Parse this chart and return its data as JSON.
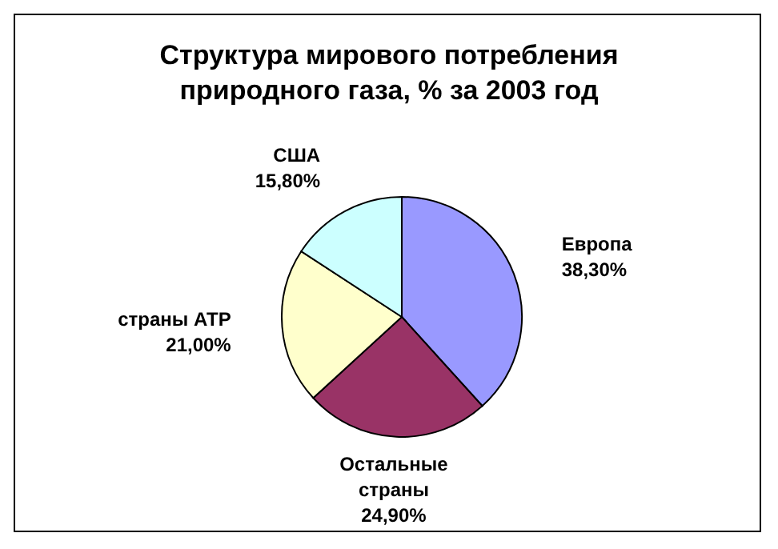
{
  "chart_data": {
    "type": "pie",
    "title": "Структура мирового потребления природного газа, % за 2003 год",
    "categories": [
      "Европа",
      "Остальные страны",
      "страны АТР",
      "США"
    ],
    "values": [
      38.3,
      24.9,
      21.0,
      15.8
    ],
    "value_labels": [
      "38,30%",
      "24,90%",
      "21,00%",
      "15,80%"
    ],
    "colors": [
      "#9999ff",
      "#993366",
      "#ffffcc",
      "#ccffff"
    ]
  }
}
